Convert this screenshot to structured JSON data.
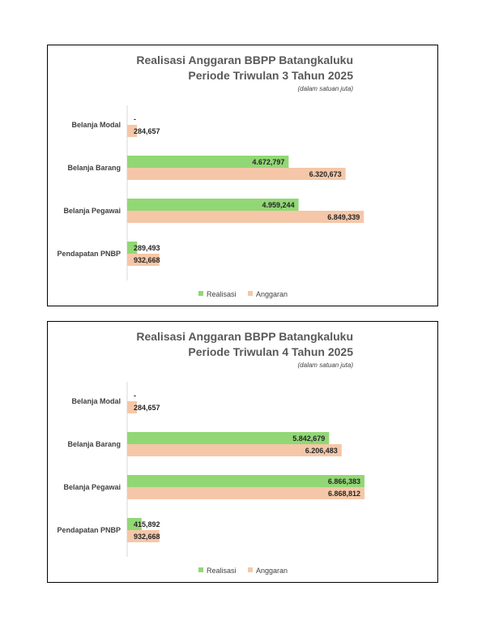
{
  "colors": {
    "realisasi": "#92d775",
    "anggaran": "#f5c7a8",
    "axis": "#d9d9d9"
  },
  "chart_data": [
    {
      "type": "bar",
      "orientation": "horizontal",
      "title_line1": "Realisasi Anggaran BBPP Batangkaluku",
      "title_line2": "Periode Triwulan 3 Tahun 2025",
      "subtitle": "(dalam satuan juta)",
      "categories": [
        "Belanja Modal",
        "Belanja Barang",
        "Belanja Pegawai",
        "Pendapatan PNBP"
      ],
      "series": [
        {
          "name": "Realisasi",
          "values": [
            0,
            4672.797,
            4959.244,
            289.493
          ],
          "labels": [
            "-",
            "4.672,797",
            "4.959,244",
            "289,493"
          ]
        },
        {
          "name": "Anggaran",
          "values": [
            284.657,
            6320.673,
            6849.339,
            932.668
          ],
          "labels": [
            "284,657",
            "6.320,673",
            "6.849,339",
            "932,668"
          ]
        }
      ],
      "xlim": [
        0,
        7500
      ],
      "legend_position": "bottom",
      "grid": false
    },
    {
      "type": "bar",
      "orientation": "horizontal",
      "title_line1": "Realisasi Anggaran BBPP Batangkaluku",
      "title_line2": "Periode Triwulan 4 Tahun 2025",
      "subtitle": "(dalam satuan juta)",
      "categories": [
        "Belanja Modal",
        "Belanja Barang",
        "Belanja Pegawai",
        "Pendapatan PNBP"
      ],
      "series": [
        {
          "name": "Realisasi",
          "values": [
            0,
            5842.679,
            6866.383,
            415.892
          ],
          "labels": [
            "-",
            "5.842,679",
            "6.866,383",
            "415,892"
          ]
        },
        {
          "name": "Anggaran",
          "values": [
            284.657,
            6206.483,
            6868.812,
            932.668
          ],
          "labels": [
            "284,657",
            "6.206,483",
            "6.868,812",
            "932,668"
          ]
        }
      ],
      "xlim": [
        0,
        7500
      ],
      "legend_position": "bottom",
      "grid": false
    }
  ]
}
